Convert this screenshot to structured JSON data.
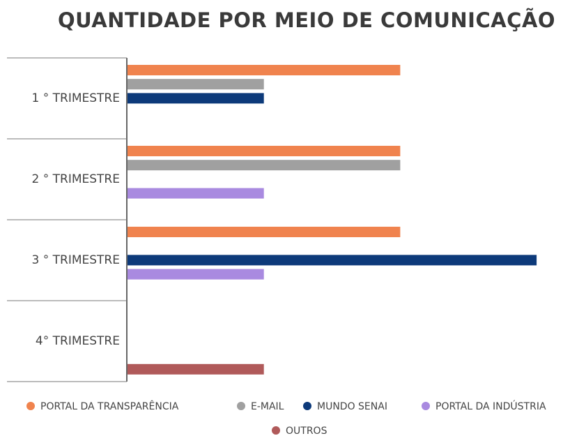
{
  "chart_data": {
    "type": "bar",
    "orientation": "horizontal",
    "title": "QUANTIDADE  POR MEIO DE COMUNICAÇÃO",
    "categories": [
      "1 ° TRIMESTRE",
      "2 ° TRIMESTRE",
      "3 ° TRIMESTRE",
      "4° TRIMESTRE"
    ],
    "series": [
      {
        "name": "PORTAL DA TRANSPARÊNCIA",
        "color": "#f0834e",
        "values": [
          2,
          2,
          2,
          null
        ]
      },
      {
        "name": "E-MAIL",
        "color": "#a0a0a0",
        "values": [
          1,
          2,
          null,
          null
        ]
      },
      {
        "name": "MUNDO SENAI",
        "color": "#0d3a7a",
        "values": [
          1,
          null,
          3,
          null
        ]
      },
      {
        "name": "PORTAL DA INDÚSTRIA",
        "color": "#a98ae0",
        "values": [
          null,
          1,
          1,
          null
        ]
      },
      {
        "name": "OUTROS",
        "color": "#b05a5a",
        "values": [
          null,
          null,
          null,
          1
        ]
      }
    ],
    "legend": "bottom"
  }
}
